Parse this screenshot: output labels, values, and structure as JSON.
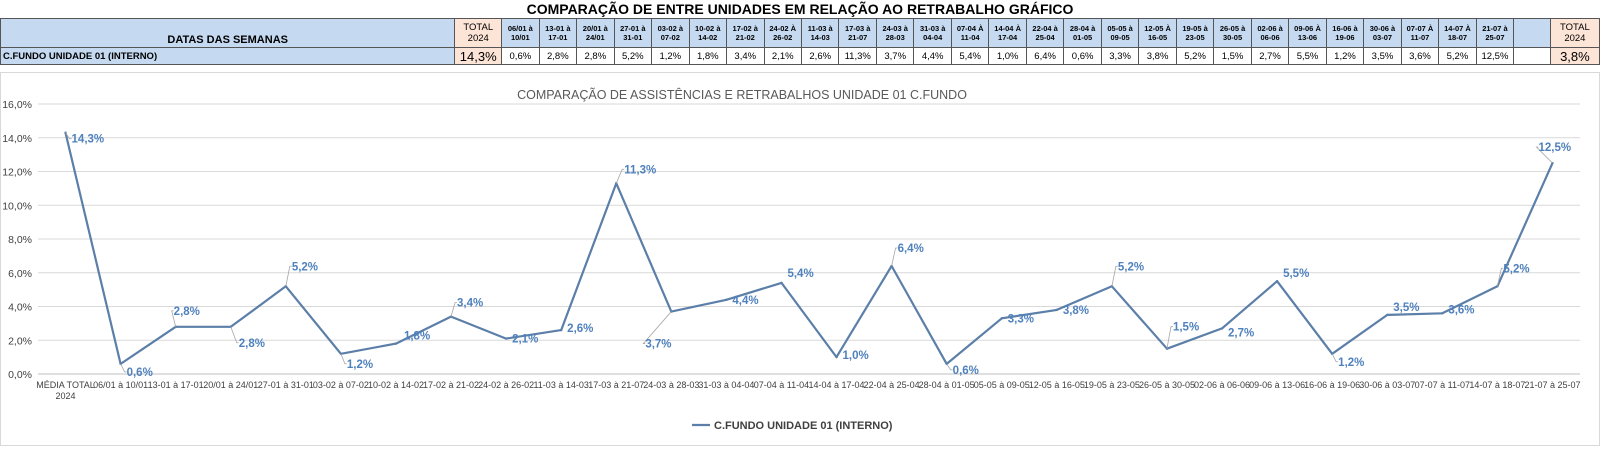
{
  "header": {
    "title": "COMPARAÇÃO DE ENTRE UNIDADES EM RELAÇÃO AO RETRABALHO GRÁFICO",
    "row_label": "DATAS DAS SEMANAS",
    "unit_label": "C.FUNDO UNIDADE 01 (INTERNO)",
    "total_left_label": "TOTAL 2024",
    "total_right_label": "TOTAL 2024",
    "total_left_value": "14,3%",
    "total_right_value": "3,8%"
  },
  "weeks": [
    {
      "label": "06/01 à 10/01",
      "value": "0,6%"
    },
    {
      "label": "13-01 à 17-01",
      "value": "2,8%"
    },
    {
      "label": "20/01 à 24/01",
      "value": "2,8%"
    },
    {
      "label": "27-01 à 31-01",
      "value": "5,2%"
    },
    {
      "label": "03-02 à 07-02",
      "value": "1,2%"
    },
    {
      "label": "10-02 à 14-02",
      "value": "1,8%"
    },
    {
      "label": "17-02 à 21-02",
      "value": "3,4%"
    },
    {
      "label": "24-02 À 26-02",
      "value": "2,1%"
    },
    {
      "label": "11-03 à 14-03",
      "value": "2,6%"
    },
    {
      "label": "17-03 à 21-07",
      "value": "11,3%"
    },
    {
      "label": "24-03 à 28-03",
      "value": "3,7%"
    },
    {
      "label": "31-03 à 04-04",
      "value": "4,4%"
    },
    {
      "label": "07-04 À 11-04",
      "value": "5,4%"
    },
    {
      "label": "14-04 À 17-04",
      "value": "1,0%"
    },
    {
      "label": "22-04 à 25-04",
      "value": "6,4%"
    },
    {
      "label": "28-04 à 01-05",
      "value": "0,6%"
    },
    {
      "label": "05-05 à 09-05",
      "value": "3,3%"
    },
    {
      "label": "12-05 À 16-05",
      "value": "3,8%"
    },
    {
      "label": "19-05 à 23-05",
      "value": "5,2%"
    },
    {
      "label": "26-05 à 30-05",
      "value": "1,5%"
    },
    {
      "label": "02-06 à 06-06",
      "value": "2,7%"
    },
    {
      "label": "09-06 À 13-06",
      "value": "5,5%"
    },
    {
      "label": "16-06 à 19-06",
      "value": "1,2%"
    },
    {
      "label": "30-06 à 03-07",
      "value": "3,5%"
    },
    {
      "label": "07-07 À 11-07",
      "value": "3,6%"
    },
    {
      "label": "14-07 À 18-07",
      "value": "5,2%"
    },
    {
      "label": "21-07 à 25-07",
      "value": "12,5%"
    }
  ],
  "chart_data": {
    "type": "line",
    "title": "COMPARAÇÃO DE ASSISTÊNCIAS E RETRABALHOS UNIDADE 01 C.FUNDO",
    "xlabel": "",
    "ylabel": "",
    "ylim": [
      0,
      16
    ],
    "yticks": [
      "0,0%",
      "2,0%",
      "4,0%",
      "6,0%",
      "8,0%",
      "10,0%",
      "12,0%",
      "14,0%",
      "16,0%"
    ],
    "grid": true,
    "legend": "bottom",
    "categories": [
      "MÉDIA TOTAL 2024",
      "06/01 à 10/01",
      "13-01 à 17-01",
      "20/01 à 24/01",
      "27-01 à 31-01",
      "03-02 à 07-02",
      "10-02 à 14-02",
      "17-02 à 21-02",
      "24-02 à 26-02",
      "11-03 à 14-03",
      "17-03 à 21-07",
      "24-03 à 28-03",
      "31-03 à 04-04",
      "07-04 à 11-04",
      "14-04 à 17-04",
      "22-04 à 25-04",
      "28-04 à 01-05",
      "05-05 à 09-05",
      "12-05 à 16-05",
      "19-05 à 23-05",
      "26-05 à 30-05",
      "02-06 à 06-06",
      "09-06 à 13-06",
      "16-06 à 19-06",
      "30-06 à 03-07",
      "07-07 à 11-07",
      "14-07 à 18-07",
      "21-07 à 25-07"
    ],
    "series": [
      {
        "name": "C.FUNDO UNIDADE 01 (INTERNO)",
        "color": "#5b7fa8",
        "values": [
          14.3,
          0.6,
          2.8,
          2.8,
          5.2,
          1.2,
          1.8,
          3.4,
          2.1,
          2.6,
          11.3,
          3.7,
          4.4,
          5.4,
          1.0,
          6.4,
          0.6,
          3.3,
          3.8,
          5.2,
          1.5,
          2.7,
          5.5,
          1.2,
          3.5,
          3.6,
          5.2,
          12.5
        ],
        "labels": [
          "14,3%",
          "0,6%",
          "2,8%",
          "2,8%",
          "5,2%",
          "1,2%",
          "1,8%",
          "3,4%",
          "2,1%",
          "2,6%",
          "11,3%",
          "3,7%",
          "4,4%",
          "5,4%",
          "1,0%",
          "6,4%",
          "0,6%",
          "3,3%",
          "3,8%",
          "5,2%",
          "1,5%",
          "2,7%",
          "5,5%",
          "1,2%",
          "3,5%",
          "3,6%",
          "5,2%",
          "12,5%"
        ]
      }
    ],
    "colors": {
      "line": "#5b7fa8",
      "label": "#4f81bd",
      "grid": "#d9d9d9",
      "header_bg": "#c5d9f1",
      "total_bg": "#fce4d6"
    }
  }
}
